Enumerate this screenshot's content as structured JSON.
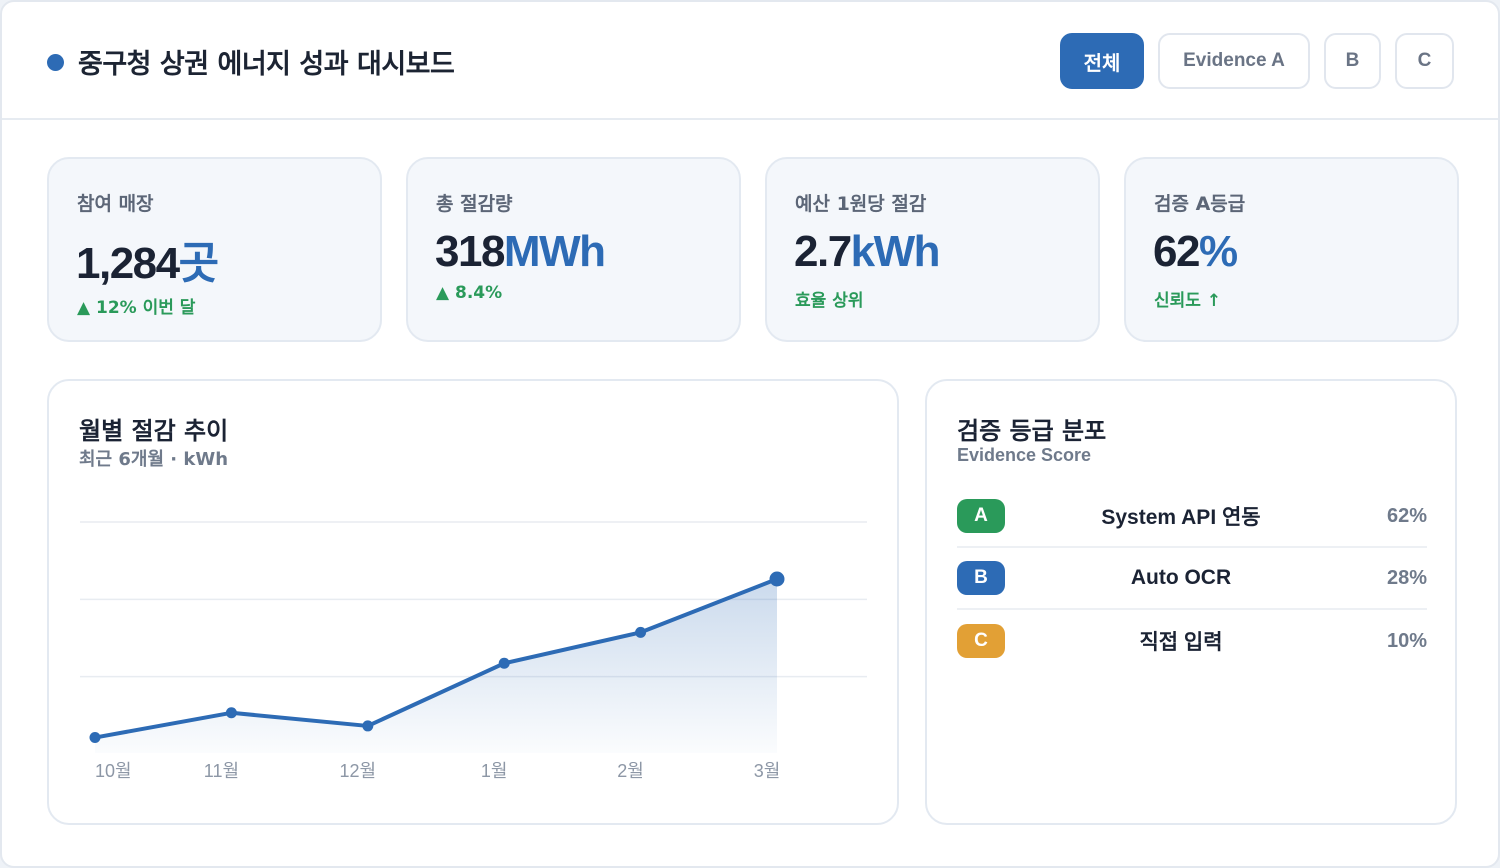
{
  "header": {
    "title": "중구청 상권 에너지 성과 대시보드",
    "filters": [
      {
        "label": "전체",
        "active": true
      },
      {
        "label": "Evidence A",
        "active": false
      },
      {
        "label": "B",
        "active": false
      },
      {
        "label": "C",
        "active": false
      }
    ]
  },
  "kpis": [
    {
      "label": "참여 매장",
      "value": "1,284",
      "unit": "곳",
      "note": "▲ 12% 이번 달"
    },
    {
      "label": "총 절감량",
      "value": "318",
      "unit": "MWh",
      "note": "▲ 8.4%"
    },
    {
      "label": "예산 1원당 절감",
      "value": "2.7",
      "unit": "kWh",
      "note": "효율 상위"
    },
    {
      "label": "검증 A등급",
      "value": "62",
      "unit": "%",
      "note": "신뢰도 ↑"
    }
  ],
  "chart": {
    "title": "월별 절감 추이",
    "subtitle": "최근 6개월 · kWh"
  },
  "chart_data": {
    "type": "area",
    "categories": [
      "10월",
      "11월",
      "12월",
      "1월",
      "2월",
      "3월"
    ],
    "values": [
      20,
      52,
      35,
      116,
      156,
      225
    ],
    "ylim": [
      0,
      300
    ],
    "grid": true,
    "legend": "none"
  },
  "distribution": {
    "title": "검증 등급 분포",
    "subtitle": "Evidence Score",
    "rows": [
      {
        "grade": "A",
        "name": "System API 연동",
        "pct": "62%"
      },
      {
        "grade": "B",
        "name": "Auto OCR",
        "pct": "28%"
      },
      {
        "grade": "C",
        "name": "직접 입력",
        "pct": "10%"
      }
    ]
  },
  "colors": {
    "accent": "#2d6bb5",
    "positive": "#2a9a5a",
    "grade_a": "#2a9a5a",
    "grade_b": "#2d6bb5",
    "grade_c": "#e2a035"
  }
}
